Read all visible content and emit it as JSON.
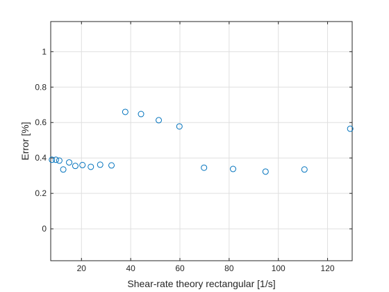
{
  "chart_data": {
    "type": "scatter",
    "xlabel": "Shear-rate theory rectangular [1/s]",
    "ylabel": "Error [%]",
    "xlim": [
      7.5,
      130
    ],
    "ylim": [
      -0.18,
      1.17
    ],
    "xticks": [
      20,
      40,
      60,
      80,
      100,
      120
    ],
    "yticks": [
      0,
      0.2,
      0.4,
      0.6,
      0.8,
      1
    ],
    "ytick_labels": [
      "0",
      "0.2",
      "0.4",
      "0.6",
      "0.8",
      "1"
    ],
    "grid": true,
    "marker": "open-circle",
    "marker_color": "#0072bd",
    "points": [
      {
        "x": 8.0,
        "y": 0.39
      },
      {
        "x": 9.6,
        "y": 0.39
      },
      {
        "x": 11.0,
        "y": 0.385
      },
      {
        "x": 12.6,
        "y": 0.335
      },
      {
        "x": 15.0,
        "y": 0.375
      },
      {
        "x": 17.5,
        "y": 0.355
      },
      {
        "x": 20.4,
        "y": 0.36
      },
      {
        "x": 23.8,
        "y": 0.35
      },
      {
        "x": 27.6,
        "y": 0.362
      },
      {
        "x": 32.2,
        "y": 0.358
      },
      {
        "x": 37.8,
        "y": 0.66
      },
      {
        "x": 44.2,
        "y": 0.648
      },
      {
        "x": 51.4,
        "y": 0.613
      },
      {
        "x": 59.8,
        "y": 0.578
      },
      {
        "x": 69.8,
        "y": 0.345
      },
      {
        "x": 81.6,
        "y": 0.338
      },
      {
        "x": 94.8,
        "y": 0.323
      },
      {
        "x": 110.6,
        "y": 0.335
      },
      {
        "x": 129.2,
        "y": 0.565
      }
    ]
  }
}
